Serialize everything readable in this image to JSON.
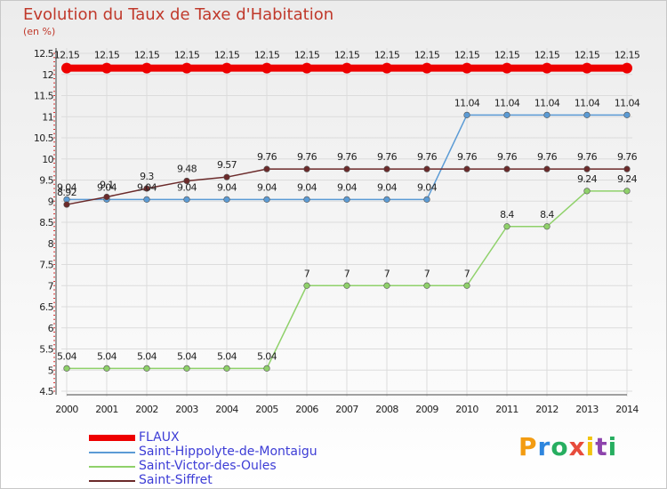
{
  "header": {
    "title": "Evolution du Taux de Taxe d'Habitation",
    "unit": "(en %)"
  },
  "logo": {
    "text": "Proxiti",
    "letters": [
      "P",
      "r",
      "o",
      "x",
      "i",
      "t",
      "i"
    ],
    "colors": [
      "#f39c12",
      "#2e86de",
      "#27ae60",
      "#e74c3c",
      "#f1c40f",
      "#8e44ad",
      "#27ae60"
    ]
  },
  "chart_data": {
    "type": "line",
    "x": [
      "2000",
      "2001",
      "2002",
      "2003",
      "2004",
      "2005",
      "2006",
      "2007",
      "2008",
      "2009",
      "2010",
      "2011",
      "2012",
      "2013",
      "2014"
    ],
    "ylim": [
      4.5,
      12.5
    ],
    "yticks": [
      "4.5",
      "5",
      "5.5",
      "6",
      "6.5",
      "7",
      "7.5",
      "8",
      "8.5",
      "9",
      "9.5",
      "10",
      "10.5",
      "11",
      "11.5",
      "12",
      "12.5"
    ],
    "title": "Evolution du Taux de Taxe d'Habitation",
    "ylabel": "(en %)",
    "grid": true,
    "series": [
      {
        "name": "FLAUX",
        "color": "#ee0000",
        "values": [
          12.15,
          12.15,
          12.15,
          12.15,
          12.15,
          12.15,
          12.15,
          12.15,
          12.15,
          12.15,
          12.15,
          12.15,
          12.15,
          12.15,
          12.15
        ],
        "labels": [
          "12.15",
          "12.15",
          "12.15",
          "12.15",
          "12.15",
          "12.15",
          "12.15",
          "12.15",
          "12.15",
          "12.15",
          "12.15",
          "12.15",
          "12.15",
          "12.15",
          "12.15"
        ]
      },
      {
        "name": "Saint-Hippolyte-de-Montaigu",
        "color": "#5b9bd5",
        "values": [
          9.04,
          9.04,
          9.04,
          9.04,
          9.04,
          9.04,
          9.04,
          9.04,
          9.04,
          9.04,
          11.04,
          11.04,
          11.04,
          11.04,
          11.04
        ],
        "labels": [
          "9.04",
          "9.04",
          "9.04",
          "9.04",
          "9.04",
          "9.04",
          "9.04",
          "9.04",
          "9.04",
          "9.04",
          "11.04",
          "11.04",
          "11.04",
          "11.04",
          "11.04"
        ]
      },
      {
        "name": "Saint-Victor-des-Oules",
        "color": "#8fd16a",
        "values": [
          5.04,
          5.04,
          5.04,
          5.04,
          5.04,
          5.04,
          7,
          7,
          7,
          7,
          7,
          8.4,
          8.4,
          9.24,
          9.24
        ],
        "labels": [
          "5.04",
          "5.04",
          "5.04",
          "5.04",
          "5.04",
          "5.04",
          "7",
          "7",
          "7",
          "7",
          "7",
          "8.4",
          "8.4",
          "9.24",
          "9.24"
        ]
      },
      {
        "name": "Saint-Siffret",
        "color": "#6b2a2a",
        "values": [
          8.92,
          9.1,
          9.3,
          9.48,
          9.57,
          9.76,
          9.76,
          9.76,
          9.76,
          9.76,
          9.76,
          9.76,
          9.76,
          9.76,
          9.76
        ],
        "labels": [
          "8.92",
          "9.1",
          "9.3",
          "9.48",
          "9.57",
          "9.76",
          "9.76",
          "9.76",
          "9.76",
          "9.76",
          "9.76",
          "9.76",
          "9.76",
          "9.76",
          "9.76"
        ]
      }
    ]
  }
}
